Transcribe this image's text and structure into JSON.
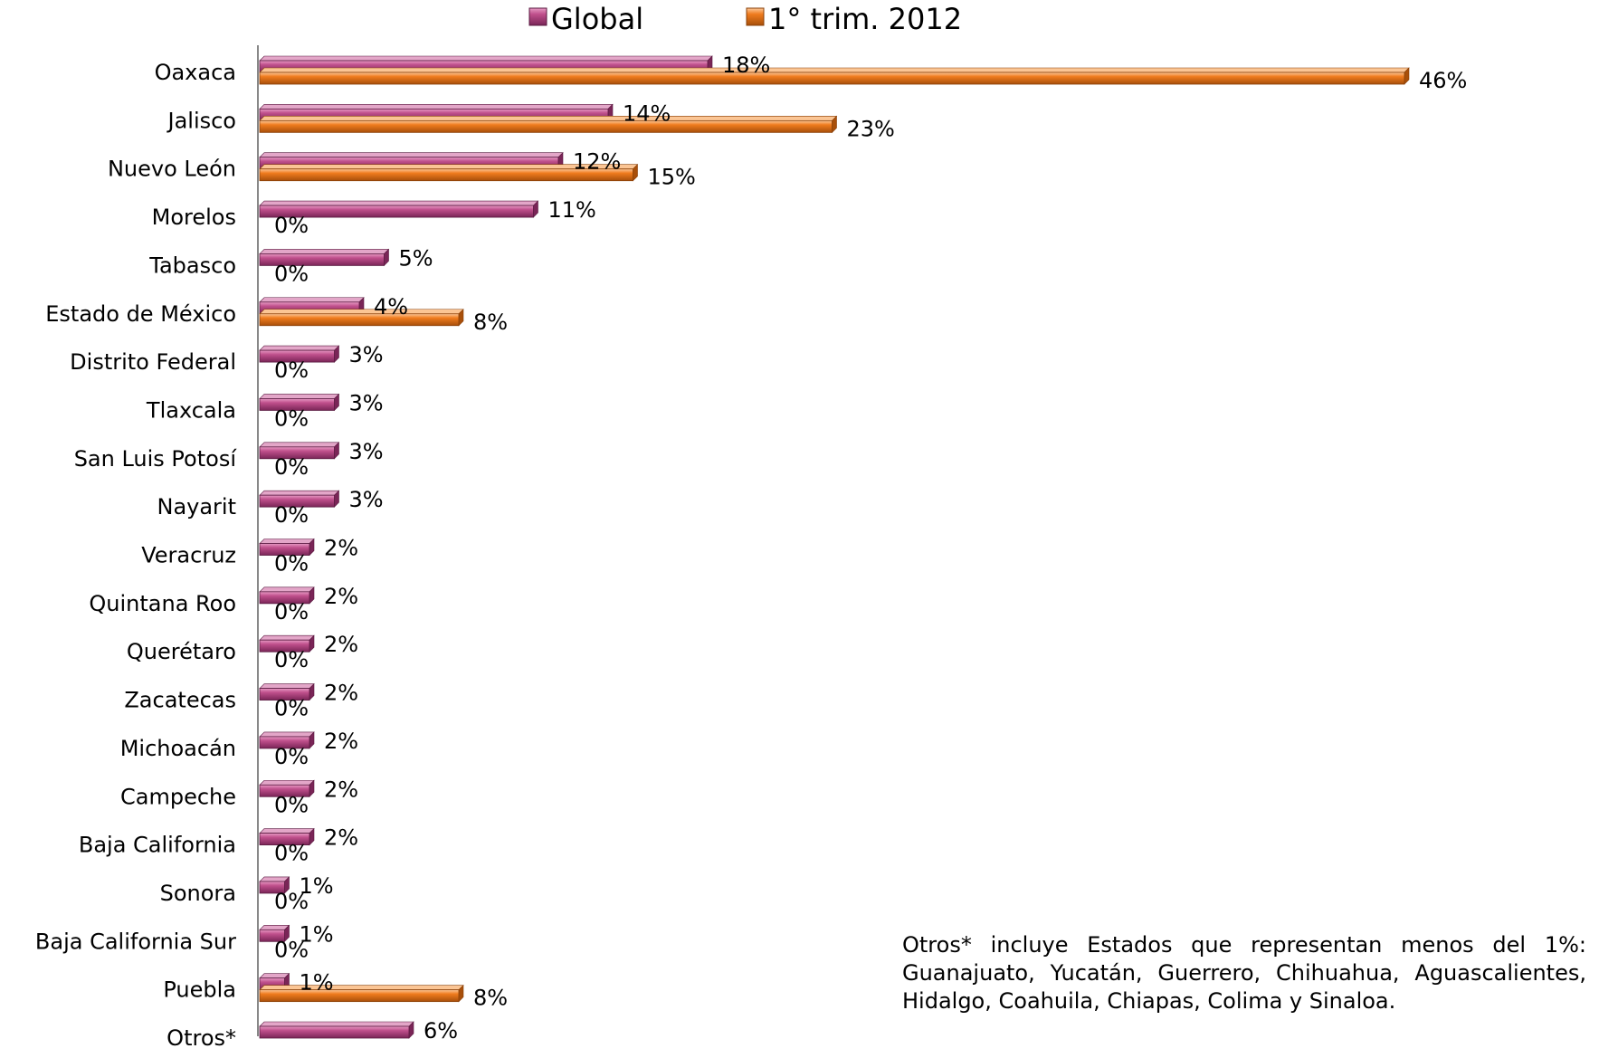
{
  "chart_data": {
    "type": "bar",
    "orientation": "horizontal",
    "title": "",
    "xlabel": "",
    "ylabel": "",
    "xlim": [
      0,
      46
    ],
    "grid": false,
    "legend_position": "top",
    "value_suffix": "%",
    "categories": [
      "Oaxaca",
      "Jalisco",
      "Nuevo León",
      "Morelos",
      "Tabasco",
      "Estado de México",
      "Distrito Federal",
      "Tlaxcala",
      "San Luis Potosí",
      "Nayarit",
      "Veracruz",
      "Quintana Roo",
      "Querétaro",
      "Zacatecas",
      "Michoacán",
      "Campeche",
      "Baja California",
      "Sonora",
      "Baja California Sur",
      "Puebla",
      "Otros*"
    ],
    "series": [
      {
        "name": "Global",
        "color": "#c0508c",
        "values": [
          18,
          14,
          12,
          11,
          5,
          4,
          3,
          3,
          3,
          3,
          2,
          2,
          2,
          2,
          2,
          2,
          2,
          1,
          1,
          1,
          6
        ],
        "labels": [
          "18%",
          "14%",
          "12%",
          "11%",
          "5%",
          "4%",
          "3%",
          "3%",
          "3%",
          "3%",
          "2%",
          "2%",
          "2%",
          "2%",
          "2%",
          "2%",
          "2%",
          "1%",
          "1%",
          "1%",
          "6%"
        ]
      },
      {
        "name": "1° trim. 2012",
        "color": "#f07c1e",
        "values": [
          46,
          23,
          15,
          0,
          0,
          8,
          0,
          0,
          0,
          0,
          0,
          0,
          0,
          0,
          0,
          0,
          0,
          0,
          0,
          8,
          null
        ],
        "labels": [
          "46%",
          "23%",
          "15%",
          "0%",
          "0%",
          "8%",
          "0%",
          "0%",
          "0%",
          "0%",
          "0%",
          "0%",
          "0%",
          "0%",
          "0%",
          "0%",
          "0%",
          "0%",
          "0%",
          "8%",
          ""
        ]
      }
    ]
  },
  "note": "Otros* incluye Estados que representan menos del 1%: Guanajuato, Yucatán, Guerrero, Chihuahua, Aguascalientes, Hidalgo, Coahuila, Chiapas, Colima y Sinaloa."
}
